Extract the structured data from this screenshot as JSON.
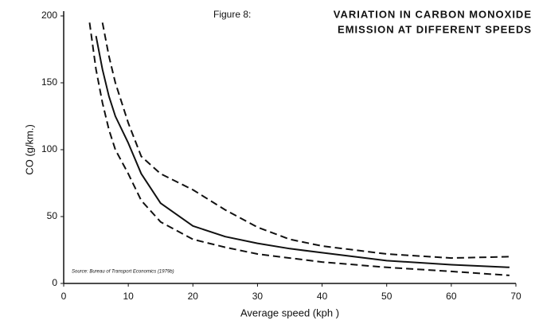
{
  "chart_data": {
    "type": "line",
    "figure_label": "Figure 8:",
    "title_lines": [
      "VARIATION IN CARBON MONOXIDE",
      "EMISSION AT DIFFERENT SPEEDS"
    ],
    "source": "Source: Bureau of Transport Economics (1979b)",
    "x_label": "Average speed (kph )",
    "y_label": "CO (g/km.)",
    "x": [
      4,
      5,
      6,
      7,
      8,
      10,
      12,
      15,
      20,
      25,
      30,
      35,
      40,
      50,
      60,
      69
    ],
    "series": [
      {
        "color": "#111111",
        "style": "solid",
        "values": [
          null,
          185,
          160,
          140,
          125,
          105,
          82,
          60,
          43,
          35,
          30,
          26,
          23,
          17,
          14,
          12
        ]
      },
      {
        "color": "#111111",
        "style": "dashed",
        "values": [
          null,
          null,
          195,
          170,
          150,
          120,
          95,
          82,
          70,
          55,
          42,
          33,
          28,
          22,
          19,
          20
        ]
      },
      {
        "color": "#111111",
        "style": "dashed",
        "values": [
          195,
          160,
          135,
          115,
          100,
          82,
          62,
          46,
          33,
          27,
          22,
          19,
          16,
          12,
          9,
          6
        ]
      }
    ],
    "xlim": [
      0,
      70
    ],
    "ylim": [
      0,
      200
    ],
    "xticks": [
      0,
      10,
      20,
      30,
      40,
      50,
      60,
      70
    ],
    "yticks": [
      0,
      50,
      100,
      150,
      200
    ]
  }
}
